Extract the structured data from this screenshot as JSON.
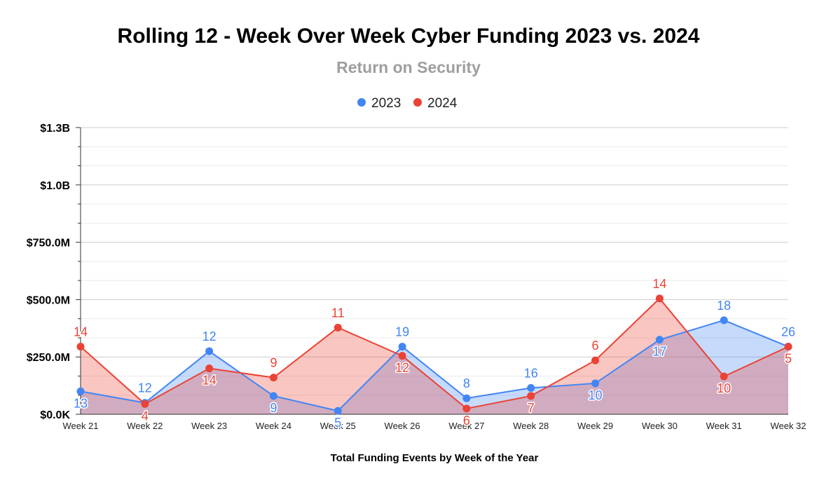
{
  "chart_data": {
    "type": "area",
    "title": "Rolling 12 - Week Over Week Cyber Funding 2023 vs. 2024",
    "subtitle": "Return on Security",
    "xlabel": "Total Funding Events by Week of the Year",
    "ylabel": "",
    "categories": [
      "Week 21",
      "Week 22",
      "Week 23",
      "Week 24",
      "Week 25",
      "Week 26",
      "Week 27",
      "Week 28",
      "Week 29",
      "Week 30",
      "Week 31",
      "Week 32"
    ],
    "ylim": [
      0,
      1250000000
    ],
    "y_ticks": [
      0,
      250000000,
      500000000,
      750000000,
      1000000000,
      1250000000
    ],
    "y_tick_labels": [
      "$0.0K",
      "$250.0M",
      "$500.0M",
      "$750.0M",
      "$1.0B",
      "$1.3B"
    ],
    "grid": true,
    "legend_position": "top",
    "series": [
      {
        "name": "2023",
        "color": "#4285f4",
        "fill": "#4285f4",
        "values": [
          100000000,
          50000000,
          275000000,
          80000000,
          15000000,
          295000000,
          70000000,
          115000000,
          135000000,
          325000000,
          410000000,
          295000000
        ],
        "labels": [
          "13",
          "12",
          "12",
          "9",
          "5",
          "19",
          "8",
          "16",
          "10",
          "17",
          "18",
          "26"
        ]
      },
      {
        "name": "2024",
        "color": "#ea4335",
        "fill": "#ea4335",
        "values": [
          295000000,
          45000000,
          200000000,
          160000000,
          378000000,
          255000000,
          25000000,
          80000000,
          235000000,
          505000000,
          165000000,
          295000000
        ],
        "labels": [
          "14",
          "4",
          "14",
          "9",
          "11",
          "12",
          "6",
          "7",
          "6",
          "14",
          "10",
          "5"
        ]
      }
    ]
  }
}
